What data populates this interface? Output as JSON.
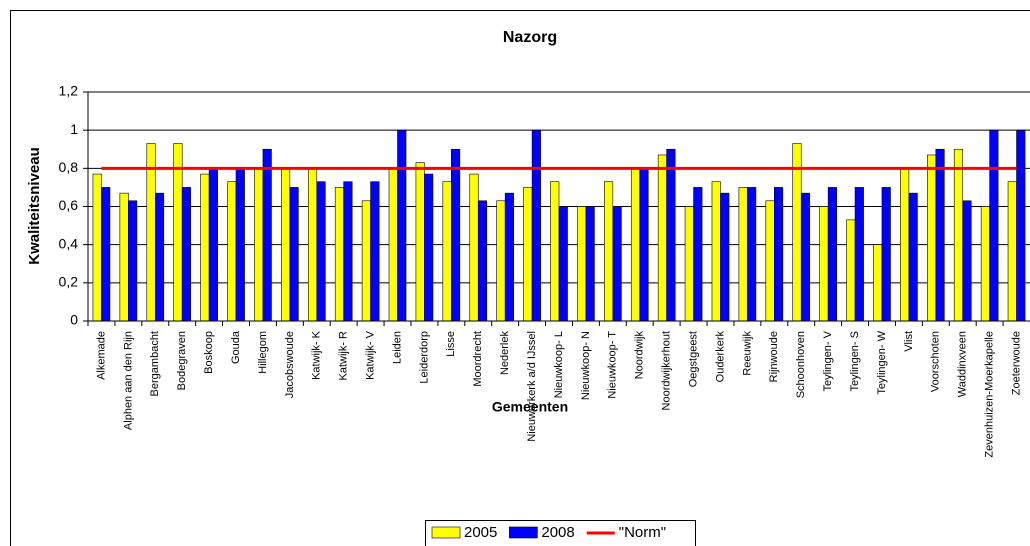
{
  "chart_data": {
    "type": "bar",
    "title": "Nazorg",
    "x_label": "Gemeenten",
    "y_label": "Kwaliteitsniveau",
    "categories": [
      "Alkemade",
      "Alphen aan den Rijn",
      "Bergambacht",
      "Bodegraven",
      "Boskoop",
      "Gouda",
      "Hillegom",
      "Jacobswoude",
      "Katwijk- K",
      "Katwijk- R",
      "Katwijk- V",
      "Leiden",
      "Leiderdorp",
      "Lisse",
      "Moordrecht",
      "Nederlek",
      "Nieuwerkerk a/d IJssel",
      "Nieuwkoop- L",
      "Nieuwkoop- N",
      "Nieuwkoop- T",
      "Noordwijk",
      "Noordwijkerhout",
      "Oegstgeest",
      "Ouderkerk",
      "Reeuwijk",
      "Rijnwoude",
      "Schoonhoven",
      "Teylingen- V",
      "Teylingen- S",
      "Teylingen- W",
      "Vlist",
      "Voorschoten",
      "Waddinxveen",
      "Zevenhuizen-Moerkapelle",
      "Zoeterwoude"
    ],
    "series": [
      {
        "name": "2005",
        "type": "bar",
        "color": "#ffff00",
        "values": [
          0.77,
          0.67,
          0.93,
          0.93,
          0.77,
          0.73,
          0.8,
          0.8,
          0.8,
          0.7,
          0.63,
          0.8,
          0.83,
          0.73,
          0.77,
          0.63,
          0.7,
          0.73,
          0.6,
          0.73,
          0.8,
          0.87,
          0.6,
          0.73,
          0.7,
          0.63,
          0.93,
          0.6,
          0.53,
          0.4,
          0.8,
          0.87,
          0.9,
          0.6,
          0.73
        ]
      },
      {
        "name": "2008",
        "type": "bar",
        "color": "#0000ff",
        "values": [
          0.7,
          0.63,
          0.67,
          0.7,
          0.8,
          0.8,
          0.9,
          0.7,
          0.73,
          0.73,
          0.73,
          1.0,
          0.77,
          0.9,
          0.63,
          0.67,
          1.0,
          0.6,
          0.6,
          0.6,
          0.8,
          0.9,
          0.7,
          0.67,
          0.7,
          0.7,
          0.67,
          0.7,
          0.7,
          0.7,
          0.67,
          0.9,
          0.63,
          1.0,
          1.0
        ]
      },
      {
        "name": "\"Norm\"",
        "type": "line",
        "color": "#ff0000",
        "values": [
          0.8,
          0.8,
          0.8,
          0.8,
          0.8,
          0.8,
          0.8,
          0.8,
          0.8,
          0.8,
          0.8,
          0.8,
          0.8,
          0.8,
          0.8,
          0.8,
          0.8,
          0.8,
          0.8,
          0.8,
          0.8,
          0.8,
          0.8,
          0.8,
          0.8,
          0.8,
          0.8,
          0.8,
          0.8,
          0.8,
          0.8,
          0.8,
          0.8,
          0.8,
          0.8
        ]
      }
    ],
    "ylim": [
      0,
      1.2
    ],
    "yticks": [
      0,
      {
        "value": 0.2,
        "label": "0,2"
      },
      {
        "value": 0.4,
        "label": "0,4"
      },
      {
        "value": 0.6,
        "label": "0,6"
      },
      {
        "value": 0.8,
        "label": "0,8"
      },
      1,
      {
        "value": 1.2,
        "label": "1,2"
      }
    ],
    "grid": true,
    "legend": "bottom"
  }
}
